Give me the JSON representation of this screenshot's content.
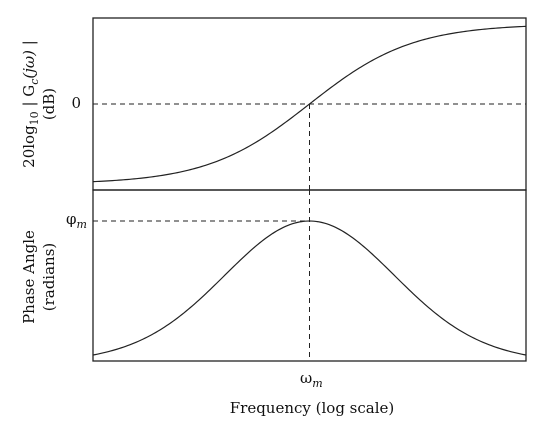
{
  "chart_data": [
    {
      "type": "line",
      "panel": "magnitude",
      "ylabel_main": "20log",
      "ylabel_sub": "10",
      "ylabel_mid": " | G",
      "ylabel_sub2": "c",
      "ylabel_tail": "(jω) |",
      "ylabel_unit": "(dB)",
      "ytick_label": "0",
      "x": [
        -4,
        -3.5,
        -3,
        -2.5,
        -2,
        -1.5,
        -1,
        -0.5,
        0,
        0.5,
        1,
        1.5,
        2,
        2.5,
        3,
        3.5,
        4
      ],
      "series": [
        {
          "values": [
            -1.0,
            -0.98,
            -0.94,
            -0.88,
            -0.8,
            -0.67,
            -0.5,
            -0.27,
            0,
            0.27,
            0.5,
            0.67,
            0.8,
            0.88,
            0.94,
            0.98,
            1.0
          ]
        }
      ],
      "ylim": [
        -1,
        1
      ],
      "dashed_guides": [
        "y=0",
        "x=omega_m"
      ]
    },
    {
      "type": "line",
      "panel": "phase",
      "ylabel_main": "Phase Angle",
      "ylabel_unit": "(radians)",
      "ytick_label_base": "φ",
      "ytick_label_sub": "m",
      "x": [
        -4,
        -3.5,
        -3,
        -2.5,
        -2,
        -1.5,
        -1,
        -0.5,
        0,
        0.5,
        1,
        1.5,
        2,
        2.5,
        3,
        3.5,
        4
      ],
      "series": [
        {
          "values": [
            0.0,
            0.05,
            0.13,
            0.24,
            0.38,
            0.54,
            0.73,
            0.91,
            1.0,
            0.91,
            0.73,
            0.54,
            0.38,
            0.24,
            0.13,
            0.05,
            0.0
          ]
        }
      ],
      "ylim": [
        0,
        1
      ],
      "dashed_guides": [
        "y=phi_m",
        "x=omega_m"
      ]
    }
  ],
  "xaxis": {
    "tick_label_base": "ω",
    "tick_label_sub": "m",
    "xlabel": "Frequency (log scale)"
  },
  "colors": {
    "line": "#222222",
    "background": "#ffffff"
  }
}
